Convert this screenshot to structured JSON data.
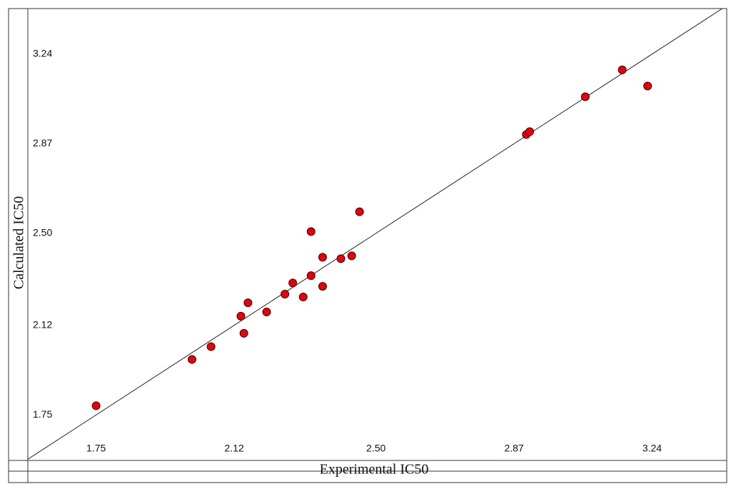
{
  "chart_data": {
    "type": "scatter",
    "xlabel": "Experimental IC50",
    "ylabel": "Calculated IC50",
    "series": [
      {
        "color": "#e8000b",
        "x": [
          1.75,
          2.007,
          2.058,
          2.138,
          2.146,
          2.157,
          2.207,
          2.256,
          2.277,
          2.305,
          2.326,
          2.326,
          2.357,
          2.357,
          2.406,
          2.435,
          2.456,
          2.903,
          2.912,
          3.061,
          3.16,
          3.228
        ],
        "values": [
          1.788,
          1.979,
          2.032,
          2.158,
          2.087,
          2.213,
          2.175,
          2.249,
          2.295,
          2.237,
          2.325,
          2.507,
          2.281,
          2.401,
          2.395,
          2.407,
          2.589,
          2.908,
          2.92,
          3.064,
          3.175,
          3.108
        ]
      }
    ],
    "xlim": [
      1.567,
      3.44
    ],
    "ylim": [
      1.562,
      3.428
    ],
    "xticks": [
      1.75,
      2.12,
      {
        "value": 2.5,
        "label": "2.50"
      },
      2.87,
      3.24
    ],
    "yticks": [
      1.75,
      2.12,
      {
        "value": 2.5,
        "label": "2.50"
      },
      2.87,
      3.24
    ],
    "identity_line": true,
    "grid": false
  }
}
